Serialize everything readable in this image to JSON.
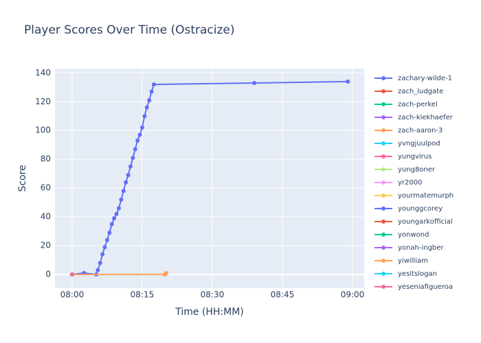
{
  "chart_data": {
    "type": "line",
    "title": "Player Scores Over Time (Ostracize)",
    "x_label": "Time (HH:MM)",
    "y_label": "Score",
    "xlim": [
      "07:56:20",
      "09:02:30"
    ],
    "xticks": [
      "08:00",
      "08:15",
      "08:30",
      "08:45",
      "09:00"
    ],
    "ylim": [
      -9.5,
      143
    ],
    "yticks": [
      0,
      20,
      40,
      60,
      80,
      100,
      120,
      140
    ],
    "grid": true,
    "legend_position": "right",
    "series": [
      {
        "name": "zachary-wilde-1",
        "color": "#636efa",
        "x": [
          "08:00:00",
          "08:02:30",
          "08:05:10",
          "08:05:30",
          "08:06:00",
          "08:06:30",
          "08:07:00",
          "08:07:30",
          "08:08:00",
          "08:08:30",
          "08:09:00",
          "08:09:30",
          "08:10:00",
          "08:10:30",
          "08:11:00",
          "08:11:30",
          "08:12:00",
          "08:12:30",
          "08:13:00",
          "08:13:30",
          "08:14:00",
          "08:14:30",
          "08:15:00",
          "08:15:30",
          "08:16:00",
          "08:16:30",
          "08:17:00",
          "08:17:30",
          "08:39:00",
          "08:59:00"
        ],
        "values": [
          0,
          1,
          0,
          3,
          8,
          14,
          19,
          24,
          29,
          35,
          39,
          42,
          46,
          52,
          58,
          64,
          69,
          75,
          81,
          87,
          93,
          97,
          102,
          110,
          116,
          121,
          127,
          132,
          133,
          134
        ]
      },
      {
        "name": "zach_ludgate",
        "color": "#EF553B",
        "x": [
          "08:00:00"
        ],
        "values": [
          0
        ]
      },
      {
        "name": "zach-perkel",
        "color": "#00cc96",
        "x": [
          "08:00:00"
        ],
        "values": [
          0
        ]
      },
      {
        "name": "zach-kiekhaefer",
        "color": "#ab63fa",
        "x": [
          "08:00:00"
        ],
        "values": [
          0
        ]
      },
      {
        "name": "zach-aaron-3",
        "color": "#FFA15A",
        "x": [
          "08:00:00",
          "08:19:50",
          "08:20:10"
        ],
        "values": [
          0,
          0,
          1
        ]
      },
      {
        "name": "yvngjuulpod",
        "color": "#19d3f3",
        "x": [
          "08:00:00"
        ],
        "values": [
          0
        ]
      },
      {
        "name": "yungvirus",
        "color": "#FF6692",
        "x": [
          "08:00:00"
        ],
        "values": [
          0
        ]
      },
      {
        "name": "yung8oner",
        "color": "#B6E880",
        "x": [
          "08:00:00"
        ],
        "values": [
          0
        ]
      },
      {
        "name": "yr2000",
        "color": "#FF97FF",
        "x": [
          "08:00:00"
        ],
        "values": [
          0
        ]
      },
      {
        "name": "yourmatemurph",
        "color": "#FECB52",
        "x": [
          "08:00:00"
        ],
        "values": [
          0
        ]
      },
      {
        "name": "younggcorey",
        "color": "#636efa",
        "x": [
          "08:00:00"
        ],
        "values": [
          0
        ]
      },
      {
        "name": "youngarkofficial",
        "color": "#EF553B",
        "x": [
          "08:00:00"
        ],
        "values": [
          0
        ]
      },
      {
        "name": "yonwond",
        "color": "#00cc96",
        "x": [
          "08:00:00"
        ],
        "values": [
          0
        ]
      },
      {
        "name": "yonah-ingber",
        "color": "#ab63fa",
        "x": [
          "08:00:00"
        ],
        "values": [
          0
        ]
      },
      {
        "name": "yiwilliam",
        "color": "#FFA15A",
        "x": [
          "08:00:00"
        ],
        "values": [
          0
        ]
      },
      {
        "name": "yesitslogan",
        "color": "#19d3f3",
        "x": [
          "08:00:00"
        ],
        "values": [
          0
        ]
      },
      {
        "name": "yeseniafigueroa",
        "color": "#FF6692",
        "x": [
          "08:00:00"
        ],
        "values": [
          0
        ]
      }
    ]
  }
}
